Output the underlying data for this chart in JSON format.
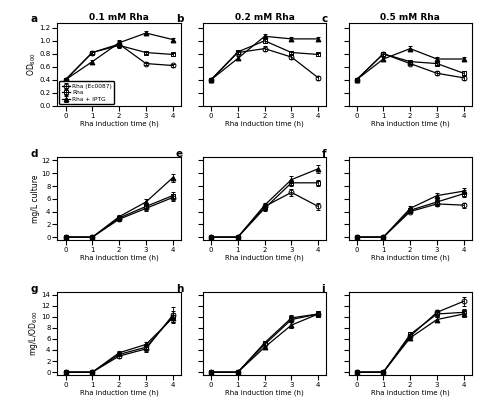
{
  "titles_col": [
    "0.1 mM Rha",
    "0.2 mM Rha",
    "0.5 mM Rha"
  ],
  "panel_labels": [
    "a",
    "b",
    "c",
    "d",
    "e",
    "f",
    "g",
    "h",
    "i"
  ],
  "x": [
    0,
    1,
    2,
    3,
    4
  ],
  "legend_labels": [
    "Rha (Ec0087)",
    "Rha",
    "Rha + IPTG"
  ],
  "od_data": {
    "a": {
      "ec0087": {
        "y": [
          0.4,
          0.82,
          0.95,
          0.65,
          0.62
        ],
        "yerr": [
          0.02,
          0.03,
          0.04,
          0.03,
          0.03
        ]
      },
      "rha": {
        "y": [
          0.4,
          0.82,
          0.93,
          0.82,
          0.79
        ],
        "yerr": [
          0.02,
          0.03,
          0.04,
          0.03,
          0.03
        ]
      },
      "iptg": {
        "y": [
          0.4,
          0.68,
          0.97,
          1.12,
          1.02
        ],
        "yerr": [
          0.02,
          0.03,
          0.04,
          0.03,
          0.03
        ]
      }
    },
    "b": {
      "ec0087": {
        "y": [
          0.4,
          0.82,
          0.88,
          0.75,
          0.43
        ],
        "yerr": [
          0.02,
          0.03,
          0.04,
          0.03,
          0.03
        ]
      },
      "rha": {
        "y": [
          0.4,
          0.83,
          1.0,
          0.82,
          0.79
        ],
        "yerr": [
          0.02,
          0.03,
          0.04,
          0.03,
          0.03
        ]
      },
      "iptg": {
        "y": [
          0.4,
          0.73,
          1.07,
          1.03,
          1.03
        ],
        "yerr": [
          0.02,
          0.03,
          0.04,
          0.03,
          0.03
        ]
      }
    },
    "c": {
      "ec0087": {
        "y": [
          0.4,
          0.8,
          0.65,
          0.5,
          0.43
        ],
        "yerr": [
          0.02,
          0.03,
          0.03,
          0.03,
          0.03
        ]
      },
      "rha": {
        "y": [
          0.4,
          0.8,
          0.68,
          0.65,
          0.5
        ],
        "yerr": [
          0.02,
          0.03,
          0.03,
          0.03,
          0.03
        ]
      },
      "iptg": {
        "y": [
          0.4,
          0.72,
          0.88,
          0.72,
          0.72
        ],
        "yerr": [
          0.02,
          0.03,
          0.04,
          0.03,
          0.03
        ]
      }
    }
  },
  "mg_data": {
    "d": {
      "ec0087": {
        "y": [
          0.0,
          0.0,
          2.8,
          4.5,
          6.2
        ],
        "yerr": [
          0.05,
          0.05,
          0.3,
          0.4,
          0.5
        ]
      },
      "rha": {
        "y": [
          0.0,
          0.0,
          3.0,
          4.8,
          6.5
        ],
        "yerr": [
          0.05,
          0.05,
          0.3,
          0.4,
          0.5
        ]
      },
      "iptg": {
        "y": [
          0.0,
          0.0,
          3.2,
          5.5,
          9.3
        ],
        "yerr": [
          0.05,
          0.05,
          0.3,
          0.4,
          0.6
        ]
      }
    },
    "e": {
      "ec0087": {
        "y": [
          0.0,
          0.0,
          4.8,
          7.0,
          4.8
        ],
        "yerr": [
          0.05,
          0.05,
          0.4,
          0.5,
          0.5
        ]
      },
      "rha": {
        "y": [
          0.0,
          0.0,
          4.5,
          8.5,
          8.5
        ],
        "yerr": [
          0.05,
          0.05,
          0.4,
          0.5,
          0.5
        ]
      },
      "iptg": {
        "y": [
          0.0,
          0.0,
          5.0,
          9.0,
          10.7
        ],
        "yerr": [
          0.05,
          0.05,
          0.4,
          0.5,
          0.6
        ]
      }
    },
    "f": {
      "ec0087": {
        "y": [
          0.0,
          0.0,
          4.0,
          5.2,
          5.0
        ],
        "yerr": [
          0.05,
          0.05,
          0.3,
          0.4,
          0.4
        ]
      },
      "rha": {
        "y": [
          0.0,
          0.0,
          4.2,
          5.5,
          6.8
        ],
        "yerr": [
          0.05,
          0.05,
          0.3,
          0.4,
          0.5
        ]
      },
      "iptg": {
        "y": [
          0.0,
          0.0,
          4.5,
          6.5,
          7.2
        ],
        "yerr": [
          0.05,
          0.05,
          0.3,
          0.4,
          0.5
        ]
      }
    }
  },
  "mgod_data": {
    "g": {
      "ec0087": {
        "y": [
          0.0,
          0.0,
          2.9,
          4.2,
          10.3
        ],
        "yerr": [
          0.05,
          0.05,
          0.3,
          0.5,
          1.5
        ]
      },
      "rha": {
        "y": [
          0.0,
          0.0,
          3.2,
          4.5,
          10.0
        ],
        "yerr": [
          0.05,
          0.05,
          0.3,
          0.5,
          1.0
        ]
      },
      "iptg": {
        "y": [
          0.0,
          0.0,
          3.5,
          5.0,
          9.8
        ],
        "yerr": [
          0.05,
          0.05,
          0.3,
          0.5,
          0.8
        ]
      }
    },
    "h": {
      "ec0087": {
        "y": [
          0.0,
          0.0,
          5.0,
          9.5,
          10.5
        ],
        "yerr": [
          0.05,
          0.05,
          0.4,
          0.5,
          0.6
        ]
      },
      "rha": {
        "y": [
          0.0,
          0.0,
          5.3,
          9.8,
          10.5
        ],
        "yerr": [
          0.05,
          0.05,
          0.4,
          0.5,
          0.6
        ]
      },
      "iptg": {
        "y": [
          0.0,
          0.0,
          4.5,
          8.5,
          10.5
        ],
        "yerr": [
          0.05,
          0.05,
          0.4,
          0.5,
          0.6
        ]
      }
    },
    "i": {
      "ec0087": {
        "y": [
          0.0,
          0.0,
          6.5,
          10.8,
          12.8
        ],
        "yerr": [
          0.05,
          0.05,
          0.4,
          0.5,
          0.8
        ]
      },
      "rha": {
        "y": [
          0.0,
          0.0,
          6.8,
          10.5,
          10.8
        ],
        "yerr": [
          0.05,
          0.05,
          0.4,
          0.5,
          0.6
        ]
      },
      "iptg": {
        "y": [
          0.0,
          0.0,
          6.2,
          9.5,
          10.5
        ],
        "yerr": [
          0.05,
          0.05,
          0.4,
          0.5,
          0.6
        ]
      }
    }
  },
  "marker_ec0087": "o",
  "marker_rha": "s",
  "marker_iptg": "^",
  "marker_size": 3.5,
  "line_width": 0.9,
  "color": "#000000"
}
